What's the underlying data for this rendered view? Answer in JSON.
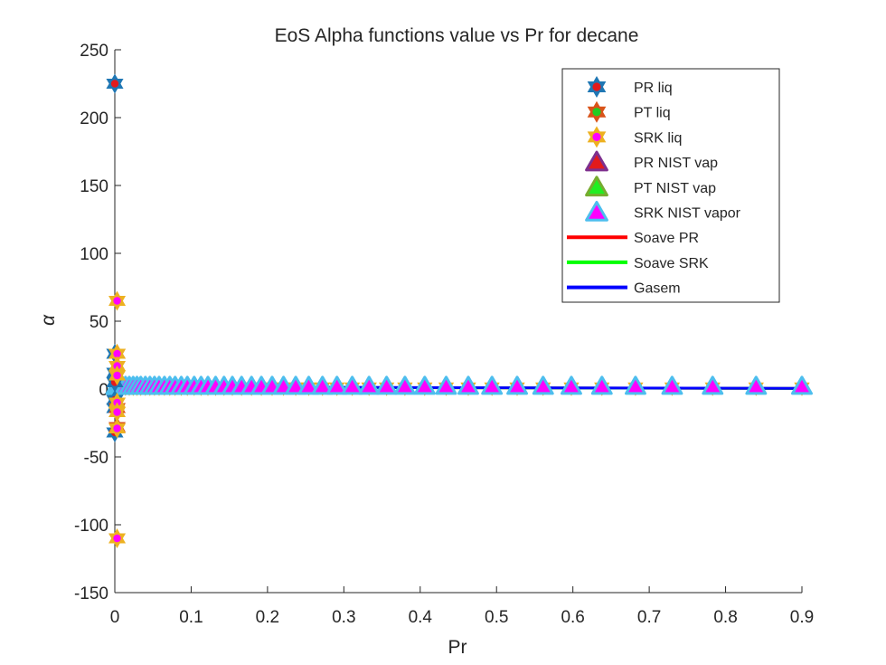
{
  "chart_data": {
    "type": "scatter",
    "title": "EoS Alpha functions value vs Pr for decane",
    "xlabel": "Pr",
    "ylabel": "α",
    "xlim": [
      0,
      0.9
    ],
    "ylim": [
      -150,
      250
    ],
    "xticks": [
      "0",
      "0.1",
      "0.2",
      "0.3",
      "0.4",
      "0.5",
      "0.6",
      "0.7",
      "0.8",
      "0.9"
    ],
    "yticks": [
      "250",
      "200",
      "150",
      "100",
      "50",
      "0",
      "-50",
      "-100",
      "-150"
    ],
    "grid": false,
    "legend_position": "top-right",
    "series": [
      {
        "name": "PR liq",
        "marker": "hexagram",
        "edge": "#1f77b4",
        "face": "#e31a1c",
        "points": [
          [
            0.0,
            225
          ],
          [
            0.0,
            26
          ],
          [
            0.0,
            12
          ],
          [
            0.0,
            5
          ],
          [
            0.0,
            -8
          ],
          [
            0.0,
            -14
          ],
          [
            0.0,
            -32
          ]
        ]
      },
      {
        "name": "PT liq",
        "marker": "hexagram",
        "edge": "#d95319",
        "face": "#22cc22",
        "points": [
          [
            0.003,
            26
          ],
          [
            0.003,
            -14
          ],
          [
            0.003,
            -28
          ]
        ]
      },
      {
        "name": "SRK liq",
        "marker": "hexagram",
        "edge": "#edb120",
        "face": "#ff00ff",
        "points": [
          [
            0.003,
            65
          ],
          [
            0.003,
            26
          ],
          [
            0.003,
            17
          ],
          [
            0.003,
            10
          ],
          [
            0.003,
            -10
          ],
          [
            0.003,
            -17
          ],
          [
            0.003,
            -29
          ],
          [
            0.003,
            -110
          ]
        ]
      },
      {
        "name": "PR NIST vap",
        "marker": "triangle",
        "edge": "#7e2f8e",
        "face": "#e31a1c",
        "points": []
      },
      {
        "name": "PT NIST vap",
        "marker": "triangle",
        "edge": "#77ac30",
        "face": "#22ee22",
        "points": []
      },
      {
        "name": "SRK NIST vapor",
        "marker": "triangle",
        "edge": "#4dbeee",
        "face": "#ff00ff",
        "points": []
      },
      {
        "name": "Soave PR",
        "line": "#ff0000",
        "points": [
          [
            0.0,
            1.5
          ],
          [
            0.9,
            0.4
          ]
        ]
      },
      {
        "name": "Soave SRK",
        "line": "#00ff00",
        "points": [
          [
            0.0,
            1.5
          ],
          [
            0.9,
            0.4
          ]
        ]
      },
      {
        "name": "Gasem",
        "line": "#0000ff",
        "points": [
          [
            0.0,
            1.6
          ],
          [
            0.9,
            0.5
          ]
        ]
      }
    ],
    "pr_grid": [
      0.002,
      0.006,
      0.01,
      0.014,
      0.019,
      0.024,
      0.029,
      0.034,
      0.04,
      0.046,
      0.052,
      0.058,
      0.065,
      0.072,
      0.079,
      0.087,
      0.095,
      0.104,
      0.113,
      0.122,
      0.132,
      0.143,
      0.154,
      0.166,
      0.179,
      0.192,
      0.206,
      0.221,
      0.237,
      0.254,
      0.272,
      0.291,
      0.311,
      0.333,
      0.356,
      0.38,
      0.406,
      0.434,
      0.463,
      0.494,
      0.527,
      0.561,
      0.598,
      0.638,
      0.682,
      0.73,
      0.783,
      0.84,
      0.9
    ],
    "pr_grid_alpha": 1.5
  }
}
